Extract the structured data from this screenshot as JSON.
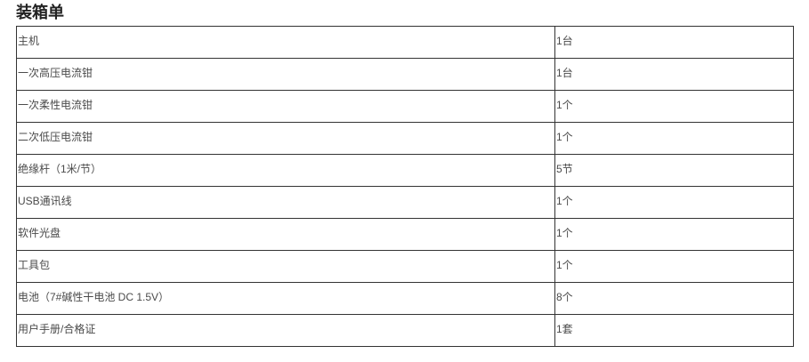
{
  "page": {
    "title": "装箱单"
  },
  "table": {
    "columns": [
      "item",
      "quantity"
    ],
    "rows": [
      {
        "item": "主机",
        "qty": "1台"
      },
      {
        "item": "一次高压电流钳",
        "qty": "1台"
      },
      {
        "item": "一次柔性电流钳",
        "qty": "1个"
      },
      {
        "item": "二次低压电流钳",
        "qty": "1个"
      },
      {
        "item": "绝缘杆（1米/节）",
        "qty": "5节"
      },
      {
        "item": "USB通讯线",
        "qty": "1个"
      },
      {
        "item": "软件光盘",
        "qty": "1个"
      },
      {
        "item": "工具包",
        "qty": "1个"
      },
      {
        "item": "电池（7#碱性干电池 DC 1.5V）",
        "qty": "8个"
      },
      {
        "item": "用户手册/合格证",
        "qty": "1套"
      }
    ]
  },
  "colors": {
    "border": "#333333",
    "text": "#4a4a4a",
    "title": "#222222",
    "background": "#ffffff"
  }
}
